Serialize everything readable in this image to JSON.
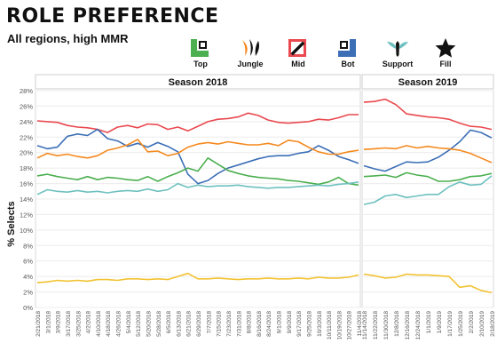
{
  "title": "ROLE PREFERENCE",
  "subtitle": "All regions, high MMR",
  "legend": [
    {
      "name": "Top",
      "color": "#4caf50",
      "icon": "top-lane-icon"
    },
    {
      "name": "Jungle",
      "color": "#f5891f",
      "icon": "jungle-claw-icon"
    },
    {
      "name": "Mid",
      "color": "#e9494f",
      "icon": "mid-lane-icon"
    },
    {
      "name": "Bot",
      "color": "#3d6fb6",
      "icon": "bot-lane-icon"
    },
    {
      "name": "Support",
      "color": "#6fc0c0",
      "icon": "support-wings-icon"
    },
    {
      "name": "Fill",
      "color": "#f2c230",
      "icon": "fill-star-icon"
    }
  ],
  "chart_data": {
    "type": "line",
    "ylabel": "% Selects",
    "ylim": [
      0,
      28
    ],
    "yticks": [
      "0%",
      "2%",
      "4%",
      "6%",
      "8%",
      "10%",
      "12%",
      "14%",
      "16%",
      "18%",
      "20%",
      "22%",
      "24%",
      "26%",
      "28%"
    ],
    "panels": [
      {
        "name": "Season 2018",
        "x": [
          "2/21/2018",
          "3/1/2018",
          "3/9/2018",
          "3/17/2018",
          "3/25/2018",
          "4/2/2018",
          "4/10/2018",
          "4/18/2018",
          "4/26/2018",
          "5/4/2018",
          "5/12/2018",
          "5/20/2018",
          "5/28/2018",
          "6/5/2018",
          "6/13/2018",
          "6/21/2018",
          "6/29/2018",
          "7/7/2018",
          "7/15/2018",
          "7/23/2018",
          "7/31/2018",
          "8/8/2018",
          "8/16/2018",
          "8/24/2018",
          "9/1/2018",
          "9/9/2018",
          "9/17/2018",
          "9/25/2018",
          "10/3/2018",
          "10/11/2018",
          "10/19/2018",
          "10/27/2018",
          "11/4/2018"
        ],
        "series": [
          {
            "name": "Mid",
            "values": [
              24.1,
              24.0,
              23.9,
              23.5,
              23.3,
              23.2,
              23.0,
              22.6,
              23.3,
              23.5,
              23.2,
              23.7,
              23.6,
              23.0,
              23.3,
              22.8,
              23.4,
              24.0,
              24.3,
              24.4,
              24.6,
              25.1,
              24.8,
              24.2,
              23.9,
              23.8,
              23.9,
              24.0,
              24.3,
              24.2,
              24.5,
              24.9,
              24.9
            ]
          },
          {
            "name": "Bot",
            "values": [
              20.9,
              20.5,
              20.7,
              22.1,
              22.4,
              22.2,
              23.0,
              21.8,
              21.5,
              20.8,
              21.2,
              20.7,
              21.3,
              20.8,
              20.1,
              17.2,
              16.0,
              16.4,
              17.3,
              18.0,
              18.4,
              18.8,
              19.2,
              19.5,
              19.6,
              19.6,
              19.9,
              20.1,
              20.9,
              20.3,
              19.5,
              19.1,
              18.6
            ]
          },
          {
            "name": "Jungle",
            "values": [
              19.3,
              19.9,
              19.6,
              19.8,
              19.5,
              19.3,
              19.6,
              20.3,
              20.6,
              21.0,
              21.7,
              20.1,
              20.2,
              19.6,
              19.9,
              20.7,
              21.1,
              21.3,
              21.1,
              21.4,
              21.2,
              21.0,
              21.0,
              21.2,
              20.9,
              21.6,
              21.4,
              20.7,
              20.1,
              19.8,
              19.8,
              20.1,
              20.3
            ]
          },
          {
            "name": "Top",
            "values": [
              17.0,
              17.2,
              16.9,
              16.7,
              16.5,
              16.9,
              16.5,
              16.8,
              16.7,
              16.5,
              16.4,
              16.9,
              16.3,
              16.9,
              17.4,
              18.0,
              17.6,
              19.3,
              18.5,
              17.7,
              17.3,
              17.0,
              16.8,
              16.7,
              16.6,
              16.4,
              16.3,
              16.1,
              15.9,
              16.2,
              16.8,
              16.0,
              15.8
            ]
          },
          {
            "name": "Support",
            "values": [
              14.6,
              15.2,
              15.0,
              14.9,
              15.1,
              14.9,
              15.0,
              14.8,
              15.0,
              15.1,
              15.0,
              15.3,
              15.0,
              15.2,
              16.0,
              15.5,
              15.8,
              15.6,
              15.7,
              15.7,
              15.8,
              15.6,
              15.5,
              15.4,
              15.5,
              15.5,
              15.6,
              15.7,
              15.8,
              15.7,
              15.9,
              16.0,
              16.2
            ]
          },
          {
            "name": "Fill",
            "values": [
              3.2,
              3.3,
              3.5,
              3.4,
              3.5,
              3.4,
              3.6,
              3.6,
              3.5,
              3.7,
              3.7,
              3.6,
              3.7,
              3.6,
              4.0,
              4.4,
              3.7,
              3.7,
              3.8,
              3.7,
              3.6,
              3.7,
              3.7,
              3.8,
              3.7,
              3.7,
              3.8,
              3.7,
              3.9,
              3.8,
              3.8,
              3.9,
              4.2
            ]
          }
        ]
      },
      {
        "name": "Season 2019",
        "x": [
          "11/14/2018",
          "11/22/2018",
          "11/30/2018",
          "12/8/2018",
          "12/16/2018",
          "12/24/2018",
          "1/1/2019",
          "1/9/2019",
          "1/17/2019",
          "1/25/2019",
          "2/2/2019",
          "2/10/2019",
          "2/18/2019"
        ],
        "series": [
          {
            "name": "Mid",
            "values": [
              26.5,
              26.6,
              26.9,
              26.2,
              25.0,
              24.8,
              24.6,
              24.5,
              24.3,
              23.8,
              23.4,
              23.3,
              23.0
            ]
          },
          {
            "name": "Bot",
            "values": [
              18.3,
              17.9,
              17.6,
              18.2,
              18.8,
              18.7,
              18.8,
              19.4,
              20.3,
              21.4,
              22.9,
              22.6,
              21.9
            ]
          },
          {
            "name": "Jungle",
            "values": [
              20.4,
              20.5,
              20.6,
              20.5,
              20.9,
              20.6,
              20.8,
              20.6,
              20.5,
              20.3,
              19.9,
              19.3,
              18.7
            ]
          },
          {
            "name": "Top",
            "values": [
              16.9,
              17.0,
              17.1,
              16.8,
              17.4,
              17.1,
              16.9,
              16.3,
              16.3,
              16.5,
              16.9,
              17.0,
              17.3
            ]
          },
          {
            "name": "Support",
            "values": [
              13.3,
              13.6,
              14.4,
              14.6,
              14.2,
              14.4,
              14.6,
              14.6,
              15.6,
              16.2,
              15.8,
              15.9,
              17.0
            ]
          },
          {
            "name": "Fill",
            "values": [
              4.3,
              4.1,
              3.8,
              3.9,
              4.3,
              4.2,
              4.2,
              4.1,
              4.0,
              2.6,
              2.8,
              2.2,
              1.9
            ]
          }
        ]
      }
    ]
  }
}
